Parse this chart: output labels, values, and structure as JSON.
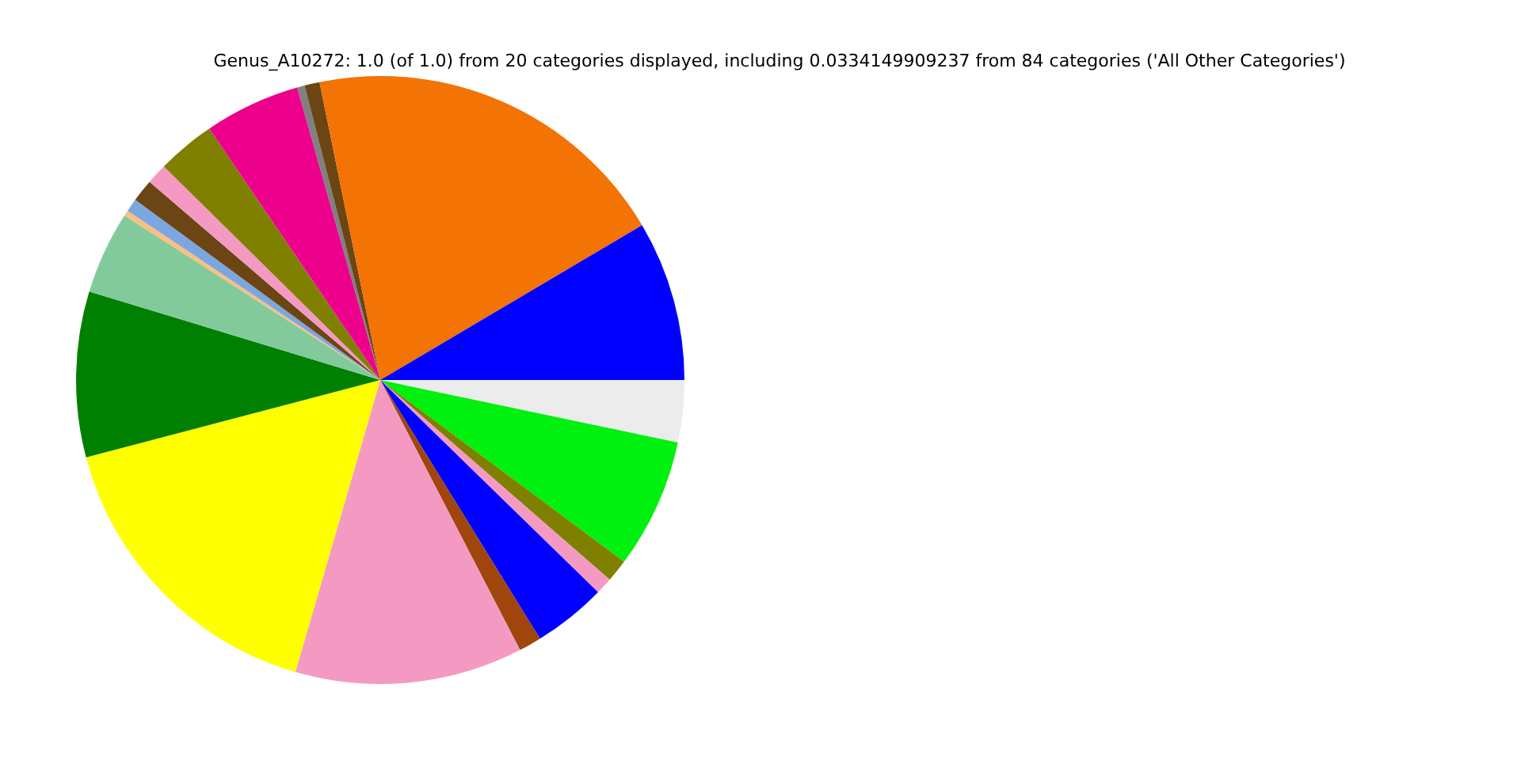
{
  "chart_data": {
    "type": "pie",
    "title": "Genus_A10272: 1.0 (of 1.0) from 20 categories displayed, including 0.0334149909237 from 84 categories ('All Other Categories')",
    "categories": [
      null,
      null,
      null,
      null,
      null,
      null,
      null,
      null,
      null,
      null,
      null,
      null,
      null,
      null,
      null,
      null,
      null,
      null,
      null,
      null
    ],
    "values": [
      8.5,
      19.7,
      0.8,
      0.4,
      5.1,
      3.1,
      1.1,
      1.2,
      0.7,
      0.3,
      4.4,
      8.8,
      16.4,
      12.1,
      1.2,
      3.9,
      0.9,
      1.2,
      6.9,
      3.3
    ],
    "colors": [
      "#0000ff",
      "#f37305",
      "#6b4513",
      "#808080",
      "#ec008c",
      "#808000",
      "#f49ac2",
      "#6b4513",
      "#7ba7e0",
      "#fbbf7f",
      "#82ca9c",
      "#008000",
      "#ffff00",
      "#f49ac2",
      "#a0450b",
      "#0000ff",
      "#f49ac2",
      "#808000",
      "#00f00f",
      "#ececec"
    ],
    "legend": false
  }
}
